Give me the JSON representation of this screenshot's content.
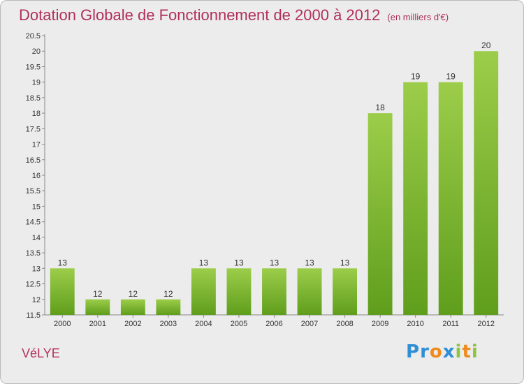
{
  "header": {
    "title": "Dotation Globale de Fonctionnement de 2000 à 2012",
    "unit": "(en milliers d'€)"
  },
  "footer": {
    "commune": "VéLYE",
    "logo_letters": [
      {
        "ch": "P",
        "color": "#2f8fd6"
      },
      {
        "ch": "r",
        "color": "#2f8fd6"
      },
      {
        "ch": "o",
        "color": "#f08a1c"
      },
      {
        "ch": "x",
        "color": "#2f8fd6"
      },
      {
        "ch": "i",
        "color": "#8cc63f"
      },
      {
        "ch": "t",
        "color": "#f08a1c"
      },
      {
        "ch": "i",
        "color": "#8cc63f"
      }
    ]
  },
  "colors": {
    "bar_top": "#9ccd4a",
    "bar_bottom": "#5f9e1c",
    "title": "#b0305a"
  },
  "chart_data": {
    "type": "bar",
    "title": "Dotation Globale de Fonctionnement de 2000 à 2012",
    "subtitle": "(en milliers d'€)",
    "categories": [
      "2000",
      "2001",
      "2002",
      "2003",
      "2004",
      "2005",
      "2006",
      "2007",
      "2008",
      "2009",
      "2010",
      "2011",
      "2012"
    ],
    "values": [
      13,
      12,
      12,
      12,
      13,
      13,
      13,
      13,
      13,
      18,
      19,
      19,
      20
    ],
    "value_labels": [
      "13",
      "12",
      "12",
      "12",
      "13",
      "13",
      "13",
      "13",
      "13",
      "18",
      "19",
      "19",
      "20"
    ],
    "yticks": [
      "11.5",
      "12",
      "12.5",
      "13",
      "13.5",
      "14",
      "14.5",
      "15",
      "15.5",
      "16",
      "16.5",
      "17",
      "17.5",
      "18",
      "18.5",
      "19",
      "19.5",
      "20",
      "20.5"
    ],
    "ylim": [
      11.5,
      20.5
    ],
    "grid": false,
    "legend": "none"
  }
}
